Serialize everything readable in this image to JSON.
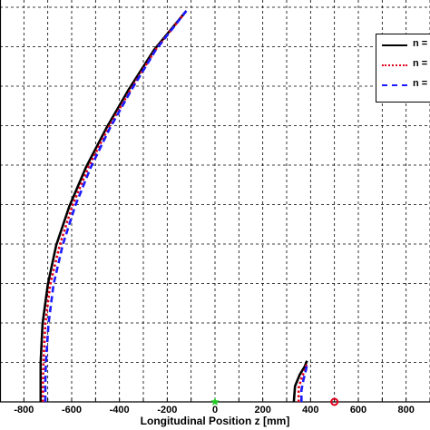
{
  "chart_data": {
    "type": "line",
    "title": "",
    "xlabel": "Longitudinal Position z [mm]",
    "ylabel": "",
    "xlim": [
      -900,
      900
    ],
    "grid": true,
    "x_ticks": [
      "-800",
      "-600",
      "-400",
      "-200",
      "0",
      "200",
      "400",
      "600",
      "800"
    ],
    "legend_placement": "top-right",
    "series": [
      {
        "name": "n = ",
        "color": "#000000",
        "style": "solid",
        "points": [
          [
            -730,
            0
          ],
          [
            -730,
            0.05
          ],
          [
            -730,
            0.1
          ],
          [
            -722,
            0.2
          ],
          [
            -700,
            0.3
          ],
          [
            -665,
            0.4
          ],
          [
            -610,
            0.5
          ],
          [
            -540,
            0.6
          ],
          [
            -455,
            0.7
          ],
          [
            -360,
            0.8
          ],
          [
            -255,
            0.9
          ],
          [
            -120,
            1.0
          ]
        ]
      },
      {
        "name": "n = ",
        "color": "#e0001b",
        "style": "dotted",
        "points": [
          [
            -720,
            0
          ],
          [
            -720,
            0.05
          ],
          [
            -718,
            0.1
          ],
          [
            -710,
            0.2
          ],
          [
            -690,
            0.3
          ],
          [
            -650,
            0.4
          ],
          [
            -598,
            0.5
          ],
          [
            -530,
            0.6
          ],
          [
            -447,
            0.7
          ],
          [
            -352,
            0.8
          ],
          [
            -250,
            0.9
          ],
          [
            -120,
            1.0
          ]
        ]
      },
      {
        "name": "n = ",
        "color": "#1a1aff",
        "style": "dashed",
        "points": [
          [
            -710,
            0
          ],
          [
            -710,
            0.05
          ],
          [
            -708,
            0.1
          ],
          [
            -697,
            0.2
          ],
          [
            -676,
            0.3
          ],
          [
            -638,
            0.4
          ],
          [
            -586,
            0.5
          ],
          [
            -520,
            0.6
          ],
          [
            -440,
            0.7
          ],
          [
            -348,
            0.8
          ],
          [
            -248,
            0.9
          ],
          [
            -120,
            1.0
          ]
        ]
      },
      {
        "name": "",
        "color": "#000000",
        "style": "solid",
        "points": [
          [
            330,
            0
          ],
          [
            335,
            0.04
          ],
          [
            355,
            0.07
          ],
          [
            375,
            0.09
          ],
          [
            385,
            0.105
          ]
        ]
      },
      {
        "name": "",
        "color": "#e0001b",
        "style": "dotted",
        "points": [
          [
            350,
            0
          ],
          [
            350,
            0.035
          ],
          [
            362,
            0.06
          ],
          [
            378,
            0.085
          ],
          [
            385,
            0.1
          ]
        ]
      },
      {
        "name": "",
        "color": "#1a1aff",
        "style": "dashed",
        "points": [
          [
            362,
            0
          ],
          [
            362,
            0.03
          ],
          [
            370,
            0.055
          ],
          [
            380,
            0.08
          ],
          [
            385,
            0.095
          ]
        ]
      }
    ],
    "markers": [
      {
        "x": 0,
        "color": "#22cc22",
        "shape": "star"
      },
      {
        "x": 500,
        "color": "#e0001b",
        "shape": "circle"
      }
    ]
  }
}
